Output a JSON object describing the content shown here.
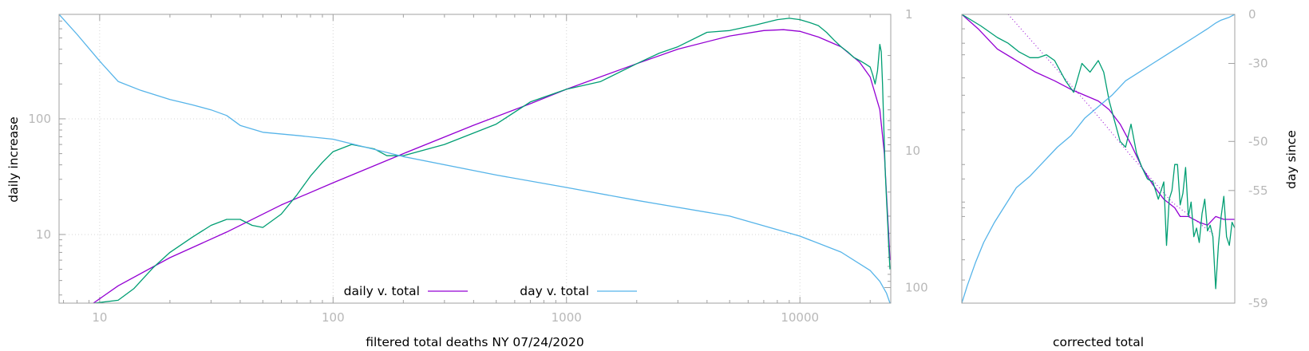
{
  "chart_data": [
    {
      "type": "line",
      "xlabel": "filtered total deaths NY 07/24/2020",
      "ylabel": "daily increase",
      "ylabel_right": "",
      "x_scale": "log",
      "y_scale": "log",
      "y2_scale": "log",
      "y2_reversed": true,
      "xlim": [
        6.7,
        24500
      ],
      "ylim": [
        2.55,
        800
      ],
      "y2lim": [
        1,
        130
      ],
      "grid": true,
      "legend_position": "bottom-center",
      "x_ticks": [
        "10",
        "100",
        "1000",
        "10000"
      ],
      "y_ticks": [
        "10",
        "100"
      ],
      "y2_ticks": [
        "1",
        "10",
        "100"
      ],
      "series": [
        {
          "name": "daily v. total",
          "axis": "left",
          "color": "#9400d3",
          "x": [
            9.4,
            12,
            20,
            35,
            60,
            100,
            200,
            400,
            700,
            1000,
            2000,
            3000,
            5000,
            7000,
            8500,
            10000,
            12000,
            15000,
            18000,
            20000,
            22000,
            23000,
            23500,
            24000,
            24300
          ],
          "y": [
            2.55,
            3.6,
            6.3,
            10.5,
            18,
            28,
            50,
            88,
            135,
            180,
            300,
            400,
            520,
            580,
            590,
            570,
            510,
            420,
            310,
            230,
            120,
            50,
            22,
            10,
            6
          ]
        },
        {
          "name": "",
          "axis": "left",
          "color": "#009e73",
          "x": [
            9.5,
            12,
            14,
            17,
            20,
            25,
            30,
            35,
            40,
            45,
            50,
            60,
            70,
            80,
            90,
            100,
            120,
            150,
            170,
            200,
            300,
            500,
            700,
            1000,
            1400,
            2000,
            2500,
            3000,
            4000,
            5000,
            6500,
            8000,
            9000,
            10000,
            11000,
            12000,
            13000,
            14000,
            15000,
            16000,
            17000,
            18000,
            19000,
            20000,
            20500,
            21000,
            21500,
            22000,
            22300,
            22600,
            22900,
            23200,
            23500,
            23800,
            24000,
            24300
          ],
          "y": [
            2.55,
            2.7,
            3.4,
            5.2,
            7,
            9.5,
            12,
            13.5,
            13.5,
            12,
            11.5,
            15,
            22,
            32,
            42,
            52,
            60,
            55,
            48,
            48,
            60,
            90,
            140,
            180,
            210,
            300,
            370,
            420,
            560,
            580,
            650,
            720,
            740,
            720,
            680,
            640,
            560,
            480,
            420,
            380,
            340,
            320,
            300,
            280,
            240,
            200,
            260,
            440,
            380,
            200,
            80,
            35,
            20,
            12,
            8,
            5
          ]
        },
        {
          "name": "day v. total",
          "axis": "right",
          "color": "#56b4e9",
          "x": [
            6.7,
            8,
            10,
            12,
            15,
            20,
            25,
            30,
            35,
            40,
            50,
            70,
            100,
            200,
            500,
            1000,
            2000,
            5000,
            10000,
            15000,
            20000,
            22000,
            23500,
            24300
          ],
          "y": [
            1,
            1.4,
            2.2,
            3.1,
            3.6,
            4.2,
            4.6,
            5,
            5.5,
            6.5,
            7.3,
            7.7,
            8.2,
            11,
            15,
            18.5,
            23,
            30,
            42,
            55,
            75,
            90,
            110,
            130
          ]
        }
      ]
    },
    {
      "type": "line",
      "xlabel": "corrected total",
      "ylabel": "",
      "ylabel_right": "day since",
      "x_scale": "linear",
      "x_reversed": true,
      "xlim": [
        1,
        0
      ],
      "y2_ticks": [
        "0",
        "-30",
        "-50",
        "-55",
        "-59"
      ],
      "grid": false,
      "series": [
        {
          "name": "",
          "color": "#9400d3",
          "style": "solid",
          "x": [
            1.0,
            0.94,
            0.87,
            0.8,
            0.73,
            0.66,
            0.6,
            0.55,
            0.5,
            0.46,
            0.42,
            0.38,
            0.34,
            0.3,
            0.26,
            0.22,
            0.2,
            0.17,
            0.13,
            0.1,
            0.07,
            0.04,
            0.0
          ],
          "y": [
            0.0,
            0.05,
            0.12,
            0.16,
            0.2,
            0.23,
            0.26,
            0.28,
            0.3,
            0.33,
            0.38,
            0.45,
            0.53,
            0.59,
            0.64,
            0.67,
            0.7,
            0.7,
            0.72,
            0.73,
            0.7,
            0.71,
            0.71
          ]
        },
        {
          "name": "",
          "color": "#9400d3",
          "style": "dotted",
          "x": [
            0.83,
            0.68,
            0.53,
            0.38,
            0.23,
            0.08
          ],
          "y": [
            0.0,
            0.16,
            0.32,
            0.49,
            0.65,
            0.76
          ]
        },
        {
          "name": "",
          "color": "#009e73",
          "style": "solid",
          "x": [
            1.0,
            0.93,
            0.87,
            0.83,
            0.79,
            0.75,
            0.72,
            0.69,
            0.66,
            0.62,
            0.59,
            0.56,
            0.53,
            0.5,
            0.48,
            0.46,
            0.44,
            0.42,
            0.4,
            0.38,
            0.36,
            0.34,
            0.32,
            0.3,
            0.28,
            0.26,
            0.25,
            0.24,
            0.23,
            0.22,
            0.21,
            0.2,
            0.19,
            0.18,
            0.17,
            0.16,
            0.15,
            0.14,
            0.13,
            0.12,
            0.11,
            0.1,
            0.09,
            0.08,
            0.07,
            0.06,
            0.05,
            0.04,
            0.03,
            0.02,
            0.01,
            0.0
          ],
          "y": [
            0.0,
            0.04,
            0.08,
            0.1,
            0.13,
            0.15,
            0.15,
            0.14,
            0.16,
            0.23,
            0.27,
            0.17,
            0.2,
            0.16,
            0.2,
            0.3,
            0.37,
            0.44,
            0.46,
            0.38,
            0.48,
            0.53,
            0.57,
            0.58,
            0.64,
            0.58,
            0.8,
            0.64,
            0.61,
            0.52,
            0.52,
            0.66,
            0.62,
            0.53,
            0.7,
            0.65,
            0.77,
            0.74,
            0.79,
            0.69,
            0.64,
            0.75,
            0.73,
            0.77,
            0.95,
            0.8,
            0.7,
            0.63,
            0.77,
            0.8,
            0.72,
            0.74
          ]
        },
        {
          "name": "",
          "color": "#56b4e9",
          "style": "solid",
          "x": [
            1.0,
            0.98,
            0.95,
            0.92,
            0.88,
            0.84,
            0.8,
            0.75,
            0.7,
            0.65,
            0.6,
            0.55,
            0.5,
            0.45,
            0.4,
            0.35,
            0.3,
            0.25,
            0.2,
            0.15,
            0.1,
            0.07,
            0.05,
            0.02,
            0.0
          ],
          "y": [
            1.0,
            0.94,
            0.86,
            0.79,
            0.72,
            0.66,
            0.6,
            0.56,
            0.51,
            0.46,
            0.42,
            0.36,
            0.32,
            0.28,
            0.23,
            0.2,
            0.17,
            0.14,
            0.11,
            0.08,
            0.05,
            0.03,
            0.02,
            0.01,
            0.0
          ]
        }
      ]
    }
  ]
}
